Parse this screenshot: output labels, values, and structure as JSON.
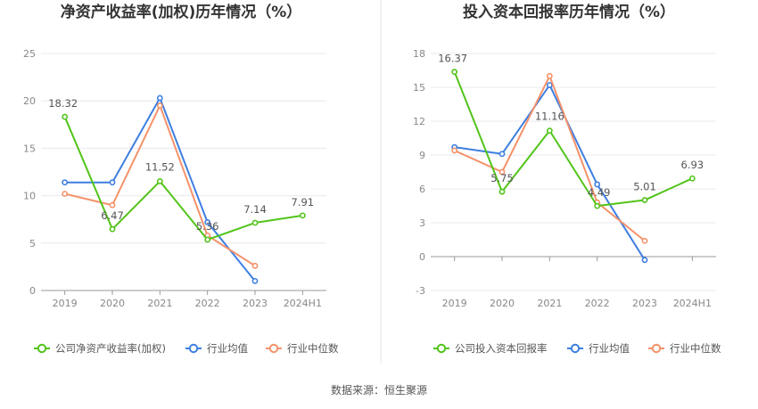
{
  "source_label": "数据来源：恒生聚源",
  "colors": {
    "company": "#52c41a",
    "avg": "#3e7fe0",
    "median": "#f5926a"
  },
  "chart_data": [
    {
      "type": "line",
      "title": "净资产收益率(加权)历年情况（%）",
      "categories": [
        "2019",
        "2020",
        "2021",
        "2022",
        "2023",
        "2024H1"
      ],
      "ylim": [
        0,
        25
      ],
      "yticks": [
        0,
        5,
        10,
        15,
        20,
        25
      ],
      "grid": true,
      "legend_position": "bottom",
      "series": [
        {
          "key": "company",
          "name": "公司净资产收益率(加权)",
          "values": [
            18.32,
            6.47,
            11.52,
            5.36,
            7.14,
            7.91
          ],
          "labels": [
            "18.32",
            "6.47",
            "11.52",
            "5.36",
            "7.14",
            "7.91"
          ]
        },
        {
          "key": "avg",
          "name": "行业均值",
          "values": [
            11.4,
            11.4,
            20.3,
            7.2,
            1.0,
            null
          ]
        },
        {
          "key": "median",
          "name": "行业中位数",
          "values": [
            10.2,
            9.0,
            19.5,
            5.8,
            2.6,
            null
          ]
        }
      ]
    },
    {
      "type": "line",
      "title": "投入资本回报率历年情况（%）",
      "categories": [
        "2019",
        "2020",
        "2021",
        "2022",
        "2023",
        "2024H1"
      ],
      "ylim": [
        -3,
        18
      ],
      "yticks": [
        -3,
        0,
        3,
        6,
        9,
        12,
        15,
        18
      ],
      "grid": true,
      "legend_position": "bottom",
      "series": [
        {
          "key": "company",
          "name": "公司投入资本回报率",
          "values": [
            16.37,
            5.75,
            11.16,
            4.49,
            5.01,
            6.93
          ],
          "labels": [
            "16.37",
            "5.75",
            "11.16",
            "4.49",
            "5.01",
            "6.93"
          ]
        },
        {
          "key": "avg",
          "name": "行业均值",
          "values": [
            9.7,
            9.1,
            15.2,
            6.4,
            -0.3,
            null
          ]
        },
        {
          "key": "median",
          "name": "行业中位数",
          "values": [
            9.4,
            7.5,
            16.0,
            4.8,
            1.4,
            null
          ]
        }
      ]
    }
  ]
}
